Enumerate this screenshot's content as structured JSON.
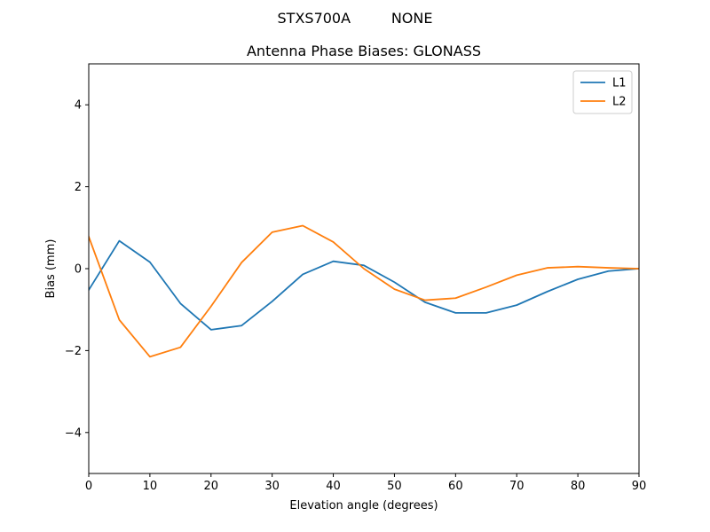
{
  "chart_data": {
    "type": "line",
    "suptitle": "STXS700A         NONE",
    "title": "Antenna Phase Biases: GLONASS",
    "xlabel": "Elevation angle (degrees)",
    "ylabel": "Bias (mm)",
    "xlim": [
      0,
      90
    ],
    "ylim": [
      -5,
      5
    ],
    "xticks": [
      0,
      10,
      20,
      30,
      40,
      50,
      60,
      70,
      80,
      90
    ],
    "yticks": [
      -4,
      -2,
      0,
      2,
      4
    ],
    "ytick_labels": [
      "−4",
      "−2",
      "0",
      "2",
      "4"
    ],
    "grid": false,
    "legend_position": "top-right",
    "x": [
      0,
      5,
      10,
      15,
      20,
      25,
      30,
      35,
      40,
      45,
      50,
      55,
      60,
      65,
      70,
      75,
      80,
      85,
      90
    ],
    "series": [
      {
        "name": "L1",
        "color": "#1f77b4",
        "values": [
          -0.52,
          0.68,
          0.16,
          -0.85,
          -1.49,
          -1.39,
          -0.8,
          -0.14,
          0.18,
          0.08,
          -0.33,
          -0.82,
          -1.08,
          -1.08,
          -0.89,
          -0.56,
          -0.26,
          -0.06,
          0.0
        ]
      },
      {
        "name": "L2",
        "color": "#ff7f0e",
        "values": [
          0.78,
          -1.25,
          -2.15,
          -1.92,
          -0.92,
          0.15,
          0.89,
          1.05,
          0.65,
          0.0,
          -0.5,
          -0.77,
          -0.72,
          -0.45,
          -0.16,
          0.02,
          0.05,
          0.02,
          0.0
        ]
      }
    ]
  }
}
